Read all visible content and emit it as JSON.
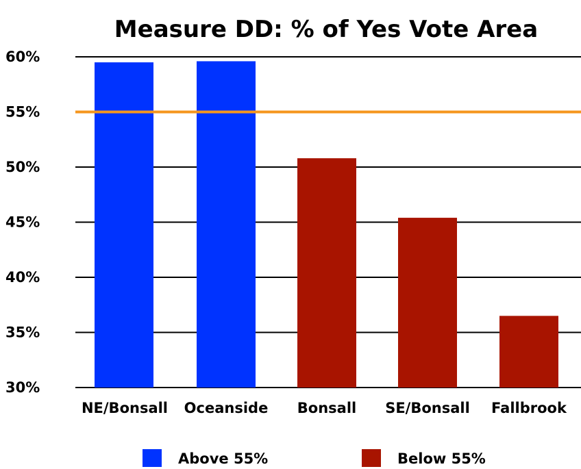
{
  "chart_data": {
    "type": "bar",
    "title": "Measure DD: % of Yes Vote Area",
    "categories": [
      "NE/Bonsall",
      "Oceanside",
      "Bonsall",
      "SE/Bonsall",
      "Fallbrook"
    ],
    "values": [
      59.5,
      59.6,
      50.8,
      45.4,
      36.5
    ],
    "value_unit": "%",
    "ylim": [
      30,
      60
    ],
    "yticks": [
      "30%",
      "35%",
      "40%",
      "45%",
      "50%",
      "55%",
      "60%"
    ],
    "ytick_values": [
      30,
      35,
      40,
      45,
      50,
      55,
      60
    ],
    "threshold": 55,
    "threshold_color": "#f5961e",
    "grid": true,
    "legend_position": "bottom",
    "legend": [
      {
        "label": "Above 55%",
        "color": "#0033ff"
      },
      {
        "label": "Below 55%",
        "color": "#a81400"
      }
    ],
    "bar_groups": [
      "Above 55%",
      "Above 55%",
      "Below 55%",
      "Below 55%",
      "Below 55%"
    ]
  }
}
